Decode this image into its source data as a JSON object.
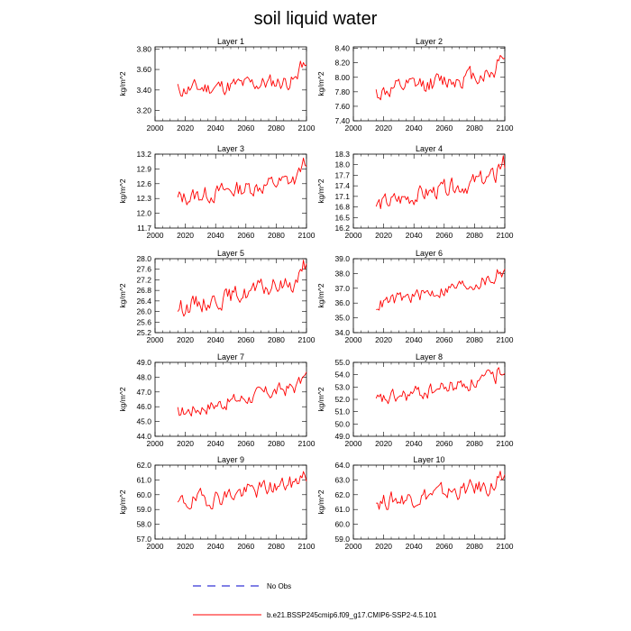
{
  "chart_data": {
    "title": "soil liquid water",
    "type": "line",
    "colors": {
      "series": "#ff0000",
      "obs": "#0000cc",
      "frame": "#000000"
    },
    "xlim": [
      2000,
      2100
    ],
    "xticks": [
      2000,
      2020,
      2040,
      2060,
      2080,
      2100
    ],
    "x_start": 2015,
    "x_end": 2100,
    "legend": {
      "obs_label": "No Obs",
      "series_label": "b.e21.BSSP245cmip6.f09_g17.CMIP6-SSP2-4.5.101"
    },
    "panels": [
      {
        "title": "Layer 1",
        "ylabel": "kg/m^2",
        "ylim": [
          3.1,
          3.82
        ],
        "yticks": [
          "3.20",
          "3.40",
          "3.60",
          "3.80"
        ],
        "base": 3.4,
        "trend": 0.1,
        "amp": 0.13,
        "end_bump": 0.18,
        "seed": 11
      },
      {
        "title": "Layer 2",
        "ylabel": "kg/m^2",
        "ylim": [
          7.4,
          8.42
        ],
        "yticks": [
          "7.40",
          "7.60",
          "7.80",
          "8.00",
          "8.20",
          "8.40"
        ],
        "base": 7.78,
        "trend": 0.32,
        "amp": 0.2,
        "end_bump": 0.25,
        "seed": 12
      },
      {
        "title": "Layer 3",
        "ylabel": "kg/m^2",
        "ylim": [
          11.7,
          13.2
        ],
        "yticks": [
          "11.7",
          "12.0",
          "12.3",
          "12.6",
          "12.9",
          "13.2"
        ],
        "base": 12.3,
        "trend": 0.4,
        "amp": 0.28,
        "end_bump": 0.3,
        "seed": 13
      },
      {
        "title": "Layer 4",
        "ylabel": "kg/m^2",
        "ylim": [
          16.2,
          18.3
        ],
        "yticks": [
          "16.2",
          "16.5",
          "16.8",
          "17.1",
          "17.4",
          "17.7",
          "18.0",
          "18.3"
        ],
        "base": 16.85,
        "trend": 0.85,
        "amp": 0.4,
        "end_bump": 0.35,
        "seed": 14
      },
      {
        "title": "Layer 5",
        "ylabel": "kg/m^2",
        "ylim": [
          25.2,
          28.0
        ],
        "yticks": [
          "25.2",
          "25.6",
          "26.0",
          "26.4",
          "26.8",
          "27.2",
          "27.6",
          "28.0"
        ],
        "base": 26.15,
        "trend": 1.05,
        "amp": 0.55,
        "end_bump": 0.5,
        "seed": 15
      },
      {
        "title": "Layer 6",
        "ylabel": "kg/m^2",
        "ylim": [
          34.0,
          39.0
        ],
        "yticks": [
          "34.0",
          "35.0",
          "36.0",
          "37.0",
          "38.0",
          "39.0"
        ],
        "base": 35.9,
        "trend": 1.9,
        "amp": 0.75,
        "end_bump": 0.6,
        "seed": 16
      },
      {
        "title": "Layer 7",
        "ylabel": "kg/m^2",
        "ylim": [
          44.0,
          49.0
        ],
        "yticks": [
          "44.0",
          "45.0",
          "46.0",
          "47.0",
          "48.0",
          "49.0"
        ],
        "base": 45.6,
        "trend": 1.9,
        "amp": 0.8,
        "end_bump": 0.6,
        "seed": 17
      },
      {
        "title": "Layer 8",
        "ylabel": "kg/m^2",
        "ylim": [
          49.0,
          55.0
        ],
        "yticks": [
          "49.0",
          "50.0",
          "51.0",
          "52.0",
          "53.0",
          "54.0",
          "55.0"
        ],
        "base": 51.8,
        "trend": 2.1,
        "amp": 1.0,
        "end_bump": 0.7,
        "seed": 18
      },
      {
        "title": "Layer 9",
        "ylabel": "kg/m^2",
        "ylim": [
          57.0,
          62.0
        ],
        "yticks": [
          "57.0",
          "58.0",
          "59.0",
          "60.0",
          "61.0",
          "62.0"
        ],
        "base": 59.4,
        "trend": 1.5,
        "amp": 0.95,
        "end_bump": 0.5,
        "seed": 19
      },
      {
        "title": "Layer 10",
        "ylabel": "kg/m^2",
        "ylim": [
          59.0,
          64.0
        ],
        "yticks": [
          "59.0",
          "60.0",
          "61.0",
          "62.0",
          "63.0",
          "64.0"
        ],
        "base": 61.5,
        "trend": 1.2,
        "amp": 0.95,
        "end_bump": 0.4,
        "seed": 20
      }
    ]
  }
}
